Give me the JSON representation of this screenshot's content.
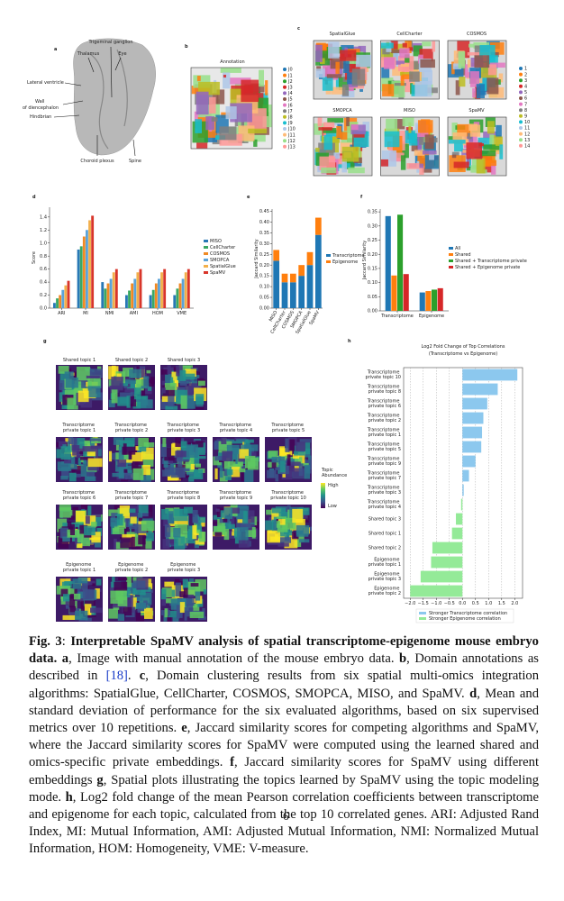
{
  "panel_a": {
    "label": "a",
    "annotations": [
      "Trigeminal ganglion",
      "Thalamus",
      "Eye",
      "Lateral ventricle",
      "Wall of diencephalon",
      "Hindbrian",
      "Choroid plexus",
      "Spine"
    ]
  },
  "panel_b": {
    "label": "b",
    "title": "Annotation",
    "legend": [
      "J0",
      "J1",
      "J2",
      "J3",
      "J4",
      "J5",
      "J6",
      "J7",
      "J8",
      "J9",
      "J10",
      "J11",
      "J12",
      "J13"
    ],
    "colors": [
      "#1f77b4",
      "#ff7f0e",
      "#2ca02c",
      "#d62728",
      "#9467bd",
      "#8c564b",
      "#e377c2",
      "#7f7f7f",
      "#bcbd22",
      "#17becf",
      "#aec7e8",
      "#ffbb78",
      "#98df8a",
      "#ff9896"
    ]
  },
  "panel_c": {
    "label": "c",
    "methods": [
      "SpatialGlue",
      "CellCharter",
      "COSMOS",
      "SMOPCA",
      "MISO",
      "SpaMV"
    ],
    "legend": [
      "1",
      "2",
      "3",
      "4",
      "5",
      "6",
      "7",
      "8",
      "9",
      "10",
      "11",
      "12",
      "13",
      "14"
    ],
    "colors": [
      "#1f77b4",
      "#ff7f0e",
      "#2ca02c",
      "#d62728",
      "#9467bd",
      "#8c564b",
      "#e377c2",
      "#7f7f7f",
      "#bcbd22",
      "#17becf",
      "#aec7e8",
      "#ffbb78",
      "#98df8a",
      "#ff9896"
    ]
  },
  "panel_labels": {
    "d": "d",
    "e": "e",
    "f": "f",
    "h": "h"
  },
  "panel_g": {
    "label": "g",
    "rows": [
      [
        "Shared topic 1",
        "Shared topic 2",
        "Shared topic 3"
      ],
      [
        "Transcriptome private topic 1",
        "Transcriptome private topic 2",
        "Transcriptome private topic 3",
        "Transcriptome private topic 4",
        "Transcriptome private topic 5"
      ],
      [
        "Transcriptome private topic 6",
        "Transcriptome private topic 7",
        "Transcriptome private topic 8",
        "Transcriptome private topic 9",
        "Transcriptome private topic 10"
      ],
      [
        "Epigenome private topic 1",
        "Epigenome private topic 2",
        "Epigenome private topic 3"
      ]
    ],
    "colorbar": {
      "title": "Topic Abundance",
      "high": "High",
      "low": "Low"
    }
  },
  "chart_data": [
    {
      "type": "grouped_bar",
      "ylabel": "Score",
      "categories": [
        "ARI",
        "MI",
        "NMI",
        "AMI",
        "HOM",
        "VME"
      ],
      "series": [
        {
          "name": "MISO",
          "color": "#2878b5",
          "values": [
            0.08,
            0.9,
            0.4,
            0.2,
            0.2,
            0.2
          ]
        },
        {
          "name": "CellCharter",
          "color": "#3aa864",
          "values": [
            0.15,
            0.95,
            0.3,
            0.27,
            0.28,
            0.3
          ]
        },
        {
          "name": "COSMOS",
          "color": "#f08a24",
          "values": [
            0.2,
            1.1,
            0.38,
            0.38,
            0.38,
            0.38
          ]
        },
        {
          "name": "SMOPCA",
          "color": "#5ba3d9",
          "values": [
            0.28,
            1.2,
            0.45,
            0.45,
            0.45,
            0.45
          ]
        },
        {
          "name": "SpatialGlue",
          "color": "#f2b04c",
          "values": [
            0.35,
            1.35,
            0.55,
            0.55,
            0.55,
            0.55
          ]
        },
        {
          "name": "SpaMV",
          "color": "#d8352a",
          "values": [
            0.42,
            1.42,
            0.6,
            0.6,
            0.6,
            0.6
          ]
        }
      ],
      "ylim": [
        0,
        1.55
      ],
      "yticks": [
        {
          "value": 0,
          "label": "0.0"
        },
        0.2,
        0.4,
        0.6,
        0.8,
        {
          "value": 1,
          "label": "1.0"
        },
        1.2,
        1.4
      ]
    },
    {
      "type": "stacked_bar",
      "ylabel": "Jaccard Similarity",
      "categories": [
        "MISO",
        "CellCharter",
        "COSMOS",
        "SMOPCA",
        "SpatialGlue",
        "SpaMV"
      ],
      "series": [
        {
          "name": "Transcriptome",
          "color": "#1f77b4",
          "values": [
            0.22,
            0.12,
            0.12,
            0.15,
            0.2,
            0.34
          ]
        },
        {
          "name": "Epigenome",
          "color": "#ff7f0e",
          "values": [
            0.05,
            0.04,
            0.04,
            0.05,
            0.06,
            0.08
          ]
        }
      ],
      "ylim": [
        0,
        0.46
      ],
      "yticks": [
        {
          "value": 0,
          "label": "0.00"
        },
        0.05,
        {
          "value": 0.1,
          "label": "0.10"
        },
        0.15,
        {
          "value": 0.2,
          "label": "0.20"
        },
        0.25,
        {
          "value": 0.3,
          "label": "0.30"
        },
        0.35,
        {
          "value": 0.4,
          "label": "0.40"
        },
        0.45
      ]
    },
    {
      "type": "grouped_bar",
      "ylabel": "Jaccard Similarity",
      "categories": [
        "Transcriptome",
        "Epigenome"
      ],
      "series": [
        {
          "name": "All",
          "color": "#1f77b4",
          "values": [
            0.335,
            0.065
          ]
        },
        {
          "name": "Shared",
          "color": "#ff7f0e",
          "values": [
            0.125,
            0.07
          ]
        },
        {
          "name": "Shared + Transcriptome private",
          "color": "#2ca02c",
          "values": [
            0.34,
            0.075
          ]
        },
        {
          "name": "Shared + Epigenome private",
          "color": "#d62728",
          "values": [
            0.13,
            0.08
          ]
        }
      ],
      "ylim": [
        0,
        0.36
      ],
      "yticks": [
        {
          "value": 0,
          "label": "0.00"
        },
        0.05,
        {
          "value": 0.1,
          "label": "0.10"
        },
        0.15,
        {
          "value": 0.2,
          "label": "0.20"
        },
        0.25,
        {
          "value": 0.3,
          "label": "0.30"
        },
        0.35
      ]
    },
    {
      "type": "diverging_barh",
      "title": "Log2 Fold Change of Top Correlations",
      "subtitle": "(Transcriptome vs Epigenome)",
      "categories": [
        "Transcriptome private topic 10",
        "Transcriptome private topic 8",
        "Transcriptome private topic 6",
        "Transcriptome private topic 2",
        "Transcriptome private topic 1",
        "Transcriptome private topic 5",
        "Transcriptome private topic 9",
        "Transcriptome private topic 7",
        "Transcriptome private topic 3",
        "Transcriptome private topic 4",
        "Shared topic 3",
        "Shared topic 1",
        "Shared topic 2",
        "Epigenome private topic 1",
        "Epigenome private topic 3",
        "Epigenome private topic 2"
      ],
      "values": [
        2.1,
        1.35,
        0.95,
        0.8,
        0.75,
        0.72,
        0.5,
        0.25,
        0.05,
        -0.05,
        -0.25,
        -0.4,
        -1.15,
        -1.2,
        -1.6,
        -2.0
      ],
      "legend": [
        {
          "name": "Stronger Transcriptome correlation",
          "color": "#8cc8ee"
        },
        {
          "name": "Stronger Epigenome correlation",
          "color": "#94ea98"
        }
      ],
      "xlim": [
        -2.25,
        2.3
      ],
      "xticks": [
        {
          "value": -2,
          "label": "−2.0"
        },
        {
          "value": -1.5,
          "label": "−1.5"
        },
        {
          "value": -1,
          "label": "−1.0"
        },
        {
          "value": -0.5,
          "label": "−0.5"
        },
        {
          "value": 0,
          "label": "0.0"
        },
        0.5,
        {
          "value": 1,
          "label": "1.0"
        },
        1.5,
        {
          "value": 2,
          "label": "2.0"
        }
      ],
      "grid": true
    }
  ],
  "caption": [
    {
      "text": "Fig. 3",
      "bold": true
    },
    {
      "text": ": "
    },
    {
      "text": "Interpretable SpaMV analysis of spatial transcriptome-epigenome mouse embryo data. ",
      "bold": true
    },
    {
      "text": "a",
      "bold": true
    },
    {
      "text": ", Image with manual annotation of the mouse embryo data. "
    },
    {
      "text": "b",
      "bold": true
    },
    {
      "text": ", Domain annotations as described in "
    },
    {
      "text": "[18]",
      "ref": true
    },
    {
      "text": ". "
    },
    {
      "text": "c",
      "bold": true
    },
    {
      "text": ", Domain clustering results from six spatial multi-omics integration algorithms: SpatialGlue, CellCharter, COSMOS, SMOPCA, MISO, and SpaMV. "
    },
    {
      "text": "d",
      "bold": true
    },
    {
      "text": ", Mean and standard deviation of performance for the six evaluated algorithms, based on six supervised metrics over 10 repetitions. "
    },
    {
      "text": "e",
      "bold": true
    },
    {
      "text": ", Jaccard similarity scores for competing algorithms and SpaMV, where the Jaccard similarity scores for SpaMV were computed using the learned shared and omics-specific private embeddings. "
    },
    {
      "text": "f",
      "bold": true
    },
    {
      "text": ", Jaccard similarity scores for SpaMV using different embeddings "
    },
    {
      "text": "g",
      "bold": true
    },
    {
      "text": ", Spatial plots illustrating the topics learned by SpaMV using the topic modeling mode. "
    },
    {
      "text": "h",
      "bold": true
    },
    {
      "text": ", Log2 fold change of the mean Pearson correlation coefficients between transcriptome and epigenome for each topic, calculated from the top 10 correlated genes. ARI: Adjusted Rand Index, MI: Mutual Information, AMI: Adjusted Mutual Information, NMI: Normalized Mutual Information, HOM: Homogeneity, VME: V-measure."
    }
  ],
  "page_number": "6"
}
